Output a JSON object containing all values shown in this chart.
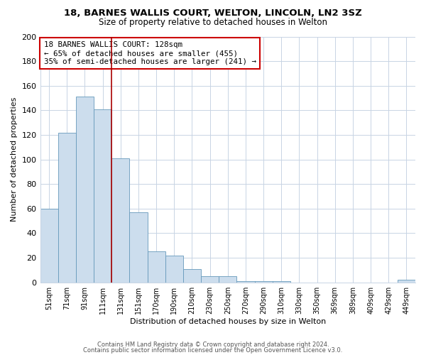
{
  "title": "18, BARNES WALLIS COURT, WELTON, LINCOLN, LN2 3SZ",
  "subtitle": "Size of property relative to detached houses in Welton",
  "xlabel": "Distribution of detached houses by size in Welton",
  "ylabel": "Number of detached properties",
  "bar_color": "#ccdded",
  "bar_edge_color": "#6699bb",
  "categories": [
    "51sqm",
    "71sqm",
    "91sqm",
    "111sqm",
    "131sqm",
    "151sqm",
    "170sqm",
    "190sqm",
    "210sqm",
    "230sqm",
    "250sqm",
    "270sqm",
    "290sqm",
    "310sqm",
    "330sqm",
    "350sqm",
    "369sqm",
    "389sqm",
    "409sqm",
    "429sqm",
    "449sqm"
  ],
  "values": [
    60,
    122,
    151,
    141,
    101,
    57,
    25,
    22,
    11,
    5,
    5,
    1,
    1,
    1,
    0,
    0,
    0,
    0,
    0,
    0,
    2
  ],
  "ylim": [
    0,
    200
  ],
  "yticks": [
    0,
    20,
    40,
    60,
    80,
    100,
    120,
    140,
    160,
    180,
    200
  ],
  "vline_x": 3.5,
  "vline_color": "#aa0000",
  "annotation_line1": "18 BARNES WALLIS COURT: 128sqm",
  "annotation_line2": "← 65% of detached houses are smaller (455)",
  "annotation_line3": "35% of semi-detached houses are larger (241) →",
  "footer_line1": "Contains HM Land Registry data © Crown copyright and database right 2024.",
  "footer_line2": "Contains public sector information licensed under the Open Government Licence v3.0.",
  "background_color": "#ffffff",
  "grid_color": "#c8d4e4"
}
